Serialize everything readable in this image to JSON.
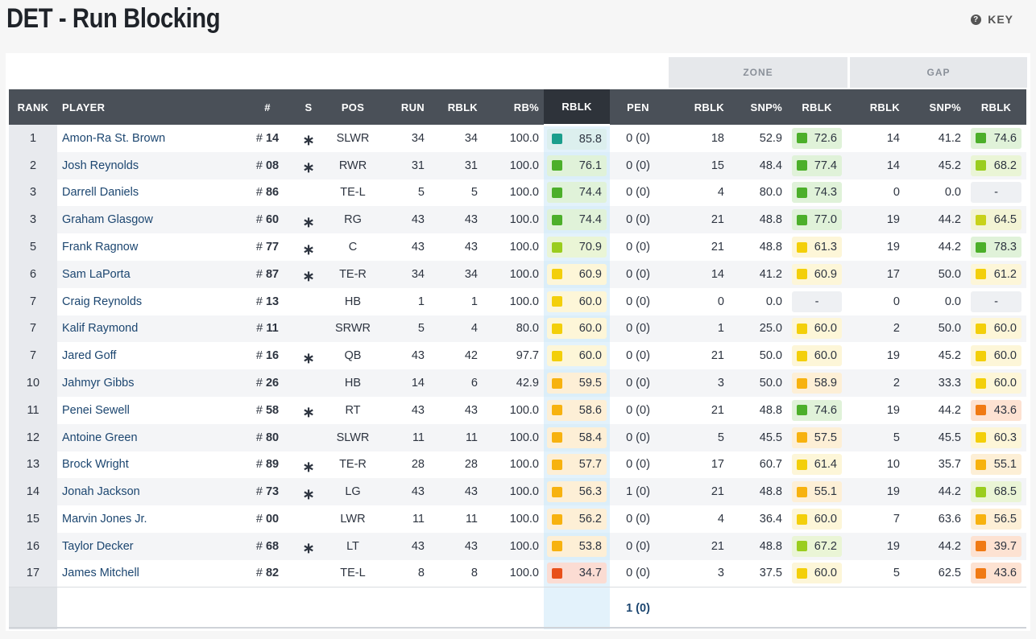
{
  "title": "DET - Run Blocking",
  "key_label": "KEY",
  "groups": {
    "zone": "ZONE",
    "gap": "GAP"
  },
  "columns": [
    "RANK",
    "PLAYER",
    "#",
    "S",
    "POS",
    "RUN",
    "RBLK",
    "RB%",
    "RBLK",
    "PEN",
    "RBLK",
    "SNP%",
    "RBLK",
    "RBLK",
    "SNP%",
    "RBLK"
  ],
  "colors": {
    "teal": "#1a9e8c",
    "green": "#4caf2a",
    "lime": "#9acd1e",
    "yellowgreen": "#c8d21a",
    "yellow": "#f3cf0a",
    "amber": "#f7b20f",
    "orange": "#f07a14",
    "red": "#e8501a"
  },
  "rows": [
    {
      "rank": "1",
      "player": "Amon-Ra St. Brown",
      "num": "14",
      "s": "*",
      "pos": "SLWR",
      "run": "34",
      "rblk": "34",
      "rbp": "100.0",
      "grade": "85.8",
      "gc": "teal",
      "pen": "0 (0)",
      "z_rblk": "18",
      "z_snp": "52.9",
      "z_grade": "72.6",
      "zc": "green",
      "g_rblk": "14",
      "g_snp": "41.2",
      "g_grade": "74.6",
      "gcc": "green"
    },
    {
      "rank": "2",
      "player": "Josh Reynolds",
      "num": "08",
      "s": "*",
      "pos": "RWR",
      "run": "31",
      "rblk": "31",
      "rbp": "100.0",
      "grade": "76.1",
      "gc": "green",
      "pen": "0 (0)",
      "z_rblk": "15",
      "z_snp": "48.4",
      "z_grade": "77.4",
      "zc": "green",
      "g_rblk": "14",
      "g_snp": "45.2",
      "g_grade": "68.2",
      "gcc": "lime"
    },
    {
      "rank": "3",
      "player": "Darrell Daniels",
      "num": "86",
      "s": "",
      "pos": "TE-L",
      "run": "5",
      "rblk": "5",
      "rbp": "100.0",
      "grade": "74.4",
      "gc": "green",
      "pen": "0 (0)",
      "z_rblk": "4",
      "z_snp": "80.0",
      "z_grade": "74.3",
      "zc": "green",
      "g_rblk": "0",
      "g_snp": "0.0",
      "g_grade": "-",
      "gcc": ""
    },
    {
      "rank": "3",
      "player": "Graham Glasgow",
      "num": "60",
      "s": "*",
      "pos": "RG",
      "run": "43",
      "rblk": "43",
      "rbp": "100.0",
      "grade": "74.4",
      "gc": "green",
      "pen": "0 (0)",
      "z_rblk": "21",
      "z_snp": "48.8",
      "z_grade": "77.0",
      "zc": "green",
      "g_rblk": "19",
      "g_snp": "44.2",
      "g_grade": "64.5",
      "gcc": "yellowgreen"
    },
    {
      "rank": "5",
      "player": "Frank Ragnow",
      "num": "77",
      "s": "*",
      "pos": "C",
      "run": "43",
      "rblk": "43",
      "rbp": "100.0",
      "grade": "70.9",
      "gc": "lime",
      "pen": "0 (0)",
      "z_rblk": "21",
      "z_snp": "48.8",
      "z_grade": "61.3",
      "zc": "yellow",
      "g_rblk": "19",
      "g_snp": "44.2",
      "g_grade": "78.3",
      "gcc": "green"
    },
    {
      "rank": "6",
      "player": "Sam LaPorta",
      "num": "87",
      "s": "*",
      "pos": "TE-R",
      "run": "34",
      "rblk": "34",
      "rbp": "100.0",
      "grade": "60.9",
      "gc": "yellow",
      "pen": "0 (0)",
      "z_rblk": "14",
      "z_snp": "41.2",
      "z_grade": "60.9",
      "zc": "yellow",
      "g_rblk": "17",
      "g_snp": "50.0",
      "g_grade": "61.2",
      "gcc": "yellow"
    },
    {
      "rank": "7",
      "player": "Craig Reynolds",
      "num": "13",
      "s": "",
      "pos": "HB",
      "run": "1",
      "rblk": "1",
      "rbp": "100.0",
      "grade": "60.0",
      "gc": "yellow",
      "pen": "0 (0)",
      "z_rblk": "0",
      "z_snp": "0.0",
      "z_grade": "-",
      "zc": "",
      "g_rblk": "0",
      "g_snp": "0.0",
      "g_grade": "-",
      "gcc": ""
    },
    {
      "rank": "7",
      "player": "Kalif Raymond",
      "num": "11",
      "s": "",
      "pos": "SRWR",
      "run": "5",
      "rblk": "4",
      "rbp": "80.0",
      "grade": "60.0",
      "gc": "yellow",
      "pen": "0 (0)",
      "z_rblk": "1",
      "z_snp": "25.0",
      "z_grade": "60.0",
      "zc": "yellow",
      "g_rblk": "2",
      "g_snp": "50.0",
      "g_grade": "60.0",
      "gcc": "yellow"
    },
    {
      "rank": "7",
      "player": "Jared Goff",
      "num": "16",
      "s": "*",
      "pos": "QB",
      "run": "43",
      "rblk": "42",
      "rbp": "97.7",
      "grade": "60.0",
      "gc": "yellow",
      "pen": "0 (0)",
      "z_rblk": "21",
      "z_snp": "50.0",
      "z_grade": "60.0",
      "zc": "yellow",
      "g_rblk": "19",
      "g_snp": "45.2",
      "g_grade": "60.0",
      "gcc": "yellow"
    },
    {
      "rank": "10",
      "player": "Jahmyr Gibbs",
      "num": "26",
      "s": "",
      "pos": "HB",
      "run": "14",
      "rblk": "6",
      "rbp": "42.9",
      "grade": "59.5",
      "gc": "amber",
      "pen": "0 (0)",
      "z_rblk": "3",
      "z_snp": "50.0",
      "z_grade": "58.9",
      "zc": "amber",
      "g_rblk": "2",
      "g_snp": "33.3",
      "g_grade": "60.0",
      "gcc": "yellow"
    },
    {
      "rank": "11",
      "player": "Penei Sewell",
      "num": "58",
      "s": "*",
      "pos": "RT",
      "run": "43",
      "rblk": "43",
      "rbp": "100.0",
      "grade": "58.6",
      "gc": "amber",
      "pen": "0 (0)",
      "z_rblk": "21",
      "z_snp": "48.8",
      "z_grade": "74.6",
      "zc": "green",
      "g_rblk": "19",
      "g_snp": "44.2",
      "g_grade": "43.6",
      "gcc": "orange"
    },
    {
      "rank": "12",
      "player": "Antoine Green",
      "num": "80",
      "s": "",
      "pos": "SLWR",
      "run": "11",
      "rblk": "11",
      "rbp": "100.0",
      "grade": "58.4",
      "gc": "amber",
      "pen": "0 (0)",
      "z_rblk": "5",
      "z_snp": "45.5",
      "z_grade": "57.5",
      "zc": "amber",
      "g_rblk": "5",
      "g_snp": "45.5",
      "g_grade": "60.3",
      "gcc": "yellow"
    },
    {
      "rank": "13",
      "player": "Brock Wright",
      "num": "89",
      "s": "*",
      "pos": "TE-R",
      "run": "28",
      "rblk": "28",
      "rbp": "100.0",
      "grade": "57.7",
      "gc": "amber",
      "pen": "0 (0)",
      "z_rblk": "17",
      "z_snp": "60.7",
      "z_grade": "61.4",
      "zc": "yellow",
      "g_rblk": "10",
      "g_snp": "35.7",
      "g_grade": "55.1",
      "gcc": "amber"
    },
    {
      "rank": "14",
      "player": "Jonah Jackson",
      "num": "73",
      "s": "*",
      "pos": "LG",
      "run": "43",
      "rblk": "43",
      "rbp": "100.0",
      "grade": "56.3",
      "gc": "amber",
      "pen": "1 (0)",
      "z_rblk": "21",
      "z_snp": "48.8",
      "z_grade": "55.1",
      "zc": "amber",
      "g_rblk": "19",
      "g_snp": "44.2",
      "g_grade": "68.5",
      "gcc": "lime"
    },
    {
      "rank": "15",
      "player": "Marvin Jones Jr.",
      "num": "00",
      "s": "",
      "pos": "LWR",
      "run": "11",
      "rblk": "11",
      "rbp": "100.0",
      "grade": "56.2",
      "gc": "amber",
      "pen": "0 (0)",
      "z_rblk": "4",
      "z_snp": "36.4",
      "z_grade": "60.0",
      "zc": "yellow",
      "g_rblk": "7",
      "g_snp": "63.6",
      "g_grade": "56.5",
      "gcc": "amber"
    },
    {
      "rank": "16",
      "player": "Taylor Decker",
      "num": "68",
      "s": "*",
      "pos": "LT",
      "run": "43",
      "rblk": "43",
      "rbp": "100.0",
      "grade": "53.8",
      "gc": "amber",
      "pen": "0 (0)",
      "z_rblk": "21",
      "z_snp": "48.8",
      "z_grade": "67.2",
      "zc": "lime",
      "g_rblk": "19",
      "g_snp": "44.2",
      "g_grade": "39.7",
      "gcc": "orange"
    },
    {
      "rank": "17",
      "player": "James Mitchell",
      "num": "82",
      "s": "",
      "pos": "TE-L",
      "run": "8",
      "rblk": "8",
      "rbp": "100.0",
      "grade": "34.7",
      "gc": "red",
      "pen": "0 (0)",
      "z_rblk": "3",
      "z_snp": "37.5",
      "z_grade": "60.0",
      "zc": "yellow",
      "g_rblk": "5",
      "g_snp": "62.5",
      "g_grade": "43.6",
      "gcc": "orange"
    }
  ],
  "footer": {
    "pen_total": "1 (0)"
  }
}
